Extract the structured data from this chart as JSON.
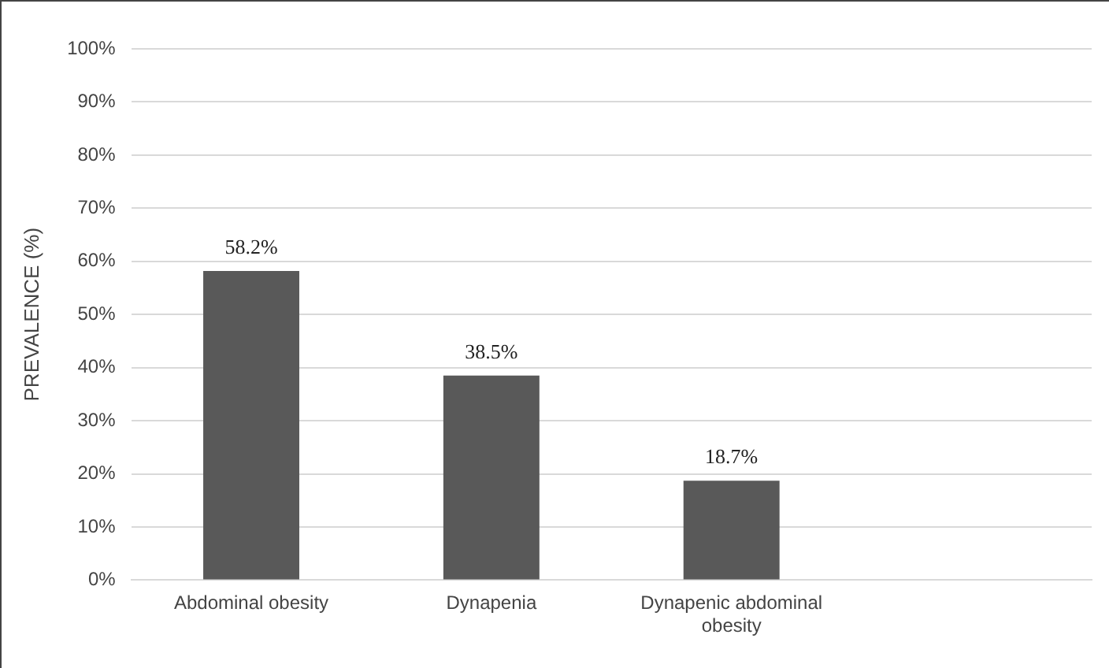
{
  "chart_data": {
    "type": "bar",
    "ylabel": "PREVALENCE (%)",
    "categories": [
      "Abdominal obesity",
      "Dynapenia",
      "Dynapenic abdominal obesity",
      null
    ],
    "values": [
      58.2,
      38.5,
      18.7,
      null
    ],
    "value_labels": [
      "58.2%",
      "38.5%",
      "18.7%",
      null
    ],
    "color": "#595959",
    "ylim": [
      0,
      100
    ],
    "yticks": [
      {
        "value": 0,
        "label": "0%"
      },
      {
        "value": 10,
        "label": "10%"
      },
      {
        "value": 20,
        "label": "20%"
      },
      {
        "value": 30,
        "label": "30%"
      },
      {
        "value": 40,
        "label": "40%"
      },
      {
        "value": 50,
        "label": "50%"
      },
      {
        "value": 60,
        "label": "60%"
      },
      {
        "value": 70,
        "label": "70%"
      },
      {
        "value": 80,
        "label": "80%"
      },
      {
        "value": 90,
        "label": "90%"
      },
      {
        "value": 100,
        "label": "100%"
      }
    ],
    "grid": "y",
    "legend": false
  }
}
